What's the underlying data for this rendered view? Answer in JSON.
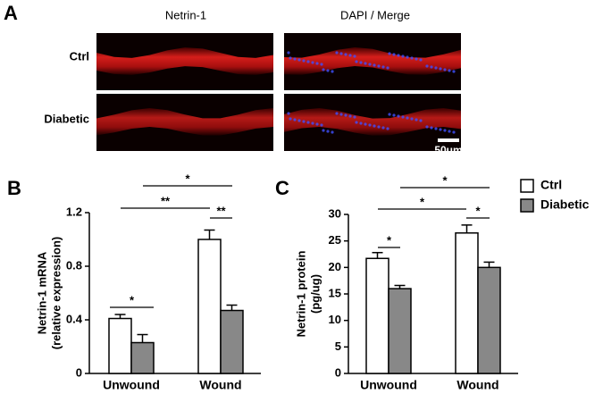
{
  "panel_a": {
    "label": "A",
    "columns": [
      "Netrin-1",
      "DAPI / Merge"
    ],
    "rows": [
      "Ctrl",
      "Diabetic"
    ],
    "scale_bar": "50um"
  },
  "chart_data": [
    {
      "type": "bar",
      "panel": "B",
      "ylabel": [
        "Netrin-1 mRNA",
        "(relative expression)"
      ],
      "categories": [
        "Unwound",
        "Wound"
      ],
      "series": [
        {
          "color": "#ffffff",
          "values": [
            0.41,
            1.0
          ],
          "errors": [
            0.03,
            0.07
          ]
        },
        {
          "color": "#888888",
          "values": [
            0.23,
            0.47
          ],
          "errors": [
            0.06,
            0.04
          ]
        }
      ],
      "ylim": [
        0,
        1.2
      ],
      "yticks": [
        0,
        0.4,
        0.8,
        1.2
      ],
      "annotations": [
        "*",
        "**",
        "**",
        "*"
      ]
    },
    {
      "type": "bar",
      "panel": "C",
      "ylabel": [
        "Netrin-1 protein",
        "(pg/ug)"
      ],
      "categories": [
        "Unwound",
        "Wound"
      ],
      "series": [
        {
          "name": "Ctrl",
          "color": "#ffffff",
          "values": [
            21.7,
            26.5
          ],
          "errors": [
            1.1,
            1.5
          ]
        },
        {
          "name": "Diabetic",
          "color": "#888888",
          "values": [
            16,
            20
          ],
          "errors": [
            0.6,
            1.0
          ]
        }
      ],
      "ylim": [
        0,
        30
      ],
      "yticks": [
        0,
        5,
        10,
        15,
        20,
        25,
        30
      ],
      "annotations": [
        "*",
        "*",
        "*",
        "*"
      ],
      "legend": "upper right"
    }
  ]
}
